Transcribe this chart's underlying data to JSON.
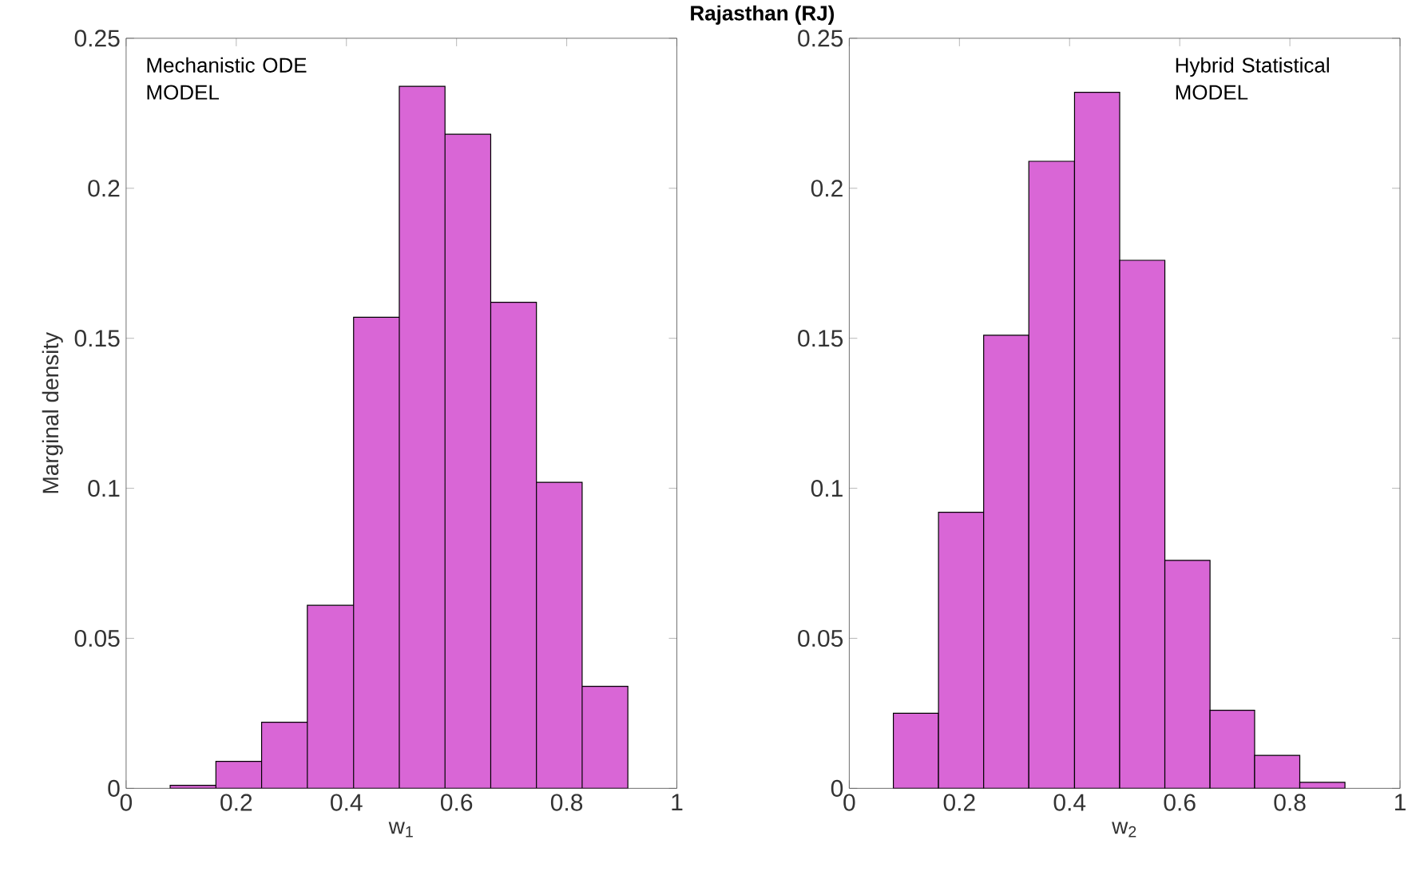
{
  "chart_data": [
    {
      "type": "histogram",
      "title": "Rajasthan (RJ)",
      "xlabel": "w$_{1}$",
      "ylabel": "Marginal density",
      "annotations": [
        "Mechanistic ODE MODEL"
      ],
      "color": "#d966d6",
      "bins": [
        0.08,
        0.163,
        0.246,
        0.329,
        0.413,
        0.496,
        0.579,
        0.662,
        0.745,
        0.828,
        0.911
      ],
      "values": [
        0.001,
        0.009,
        0.022,
        0.061,
        0.157,
        0.234,
        0.218,
        0.162,
        0.102,
        0.034
      ],
      "xlim": [
        0,
        1
      ],
      "ylim": [
        0,
        0.25
      ],
      "xticks": [
        0,
        0.2,
        0.4,
        0.6,
        0.8,
        1
      ],
      "yticks": [
        0,
        0.05,
        0.1,
        0.15,
        0.2,
        0.25
      ],
      "grid": false
    },
    {
      "type": "histogram",
      "xlabel": "w$_{2}$",
      "annotations": [
        "Hybrid Statistical MODEL"
      ],
      "color": "#d966d6",
      "bins": [
        0.08,
        0.162,
        0.244,
        0.326,
        0.409,
        0.491,
        0.573,
        0.655,
        0.736,
        0.818,
        0.9
      ],
      "values": [
        0.025,
        0.092,
        0.151,
        0.209,
        0.232,
        0.176,
        0.076,
        0.026,
        0.011,
        0.002
      ],
      "xlim": [
        0,
        1
      ],
      "ylim": [
        0,
        0.25
      ],
      "xticks": [
        0,
        0.2,
        0.4,
        0.6,
        0.8,
        1
      ],
      "yticks": [
        0,
        0.05,
        0.1,
        0.15,
        0.2,
        0.25
      ],
      "grid": false
    }
  ]
}
